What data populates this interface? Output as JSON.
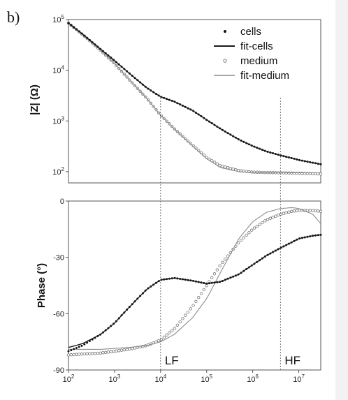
{
  "panel_label": "b)",
  "chart_data": [
    {
      "type": "line",
      "panel": "magnitude",
      "xscale": "log",
      "yscale": "log",
      "xlim": [
        100,
        30000000
      ],
      "ylim": [
        60,
        100000
      ],
      "ylabel": "|Z| (Ω)",
      "yticks": [
        {
          "value": 100,
          "base": "10",
          "exp": "2"
        },
        {
          "value": 1000,
          "base": "10",
          "exp": "3"
        },
        {
          "value": 10000,
          "base": "10",
          "exp": "4"
        },
        {
          "value": 100000,
          "base": "10",
          "exp": "5"
        }
      ],
      "legend": {
        "position": "top-right",
        "entries": [
          {
            "label": "cells",
            "style": "filled-dot"
          },
          {
            "label": "fit-cells",
            "style": "dark-line"
          },
          {
            "label": "medium",
            "style": "open-circle"
          },
          {
            "label": "fit-medium",
            "style": "gray-line"
          }
        ]
      },
      "series": [
        {
          "name": "cells",
          "style": "filled-dot",
          "x": [
            100,
            200,
            500,
            1000,
            2000,
            5000,
            10000,
            20000,
            50000,
            100000,
            200000,
            500000,
            1000000,
            2000000,
            4000000,
            7000000,
            10000000,
            20000000,
            30000000
          ],
          "y": [
            85000,
            52000,
            26000,
            15500,
            9000,
            4500,
            3000,
            2400,
            1600,
            1050,
            700,
            430,
            320,
            250,
            210,
            185,
            170,
            150,
            140
          ]
        },
        {
          "name": "fit-cells",
          "style": "dark-line",
          "x": [
            100,
            200,
            500,
            1000,
            2000,
            5000,
            10000,
            20000,
            50000,
            100000,
            200000,
            500000,
            1000000,
            2000000,
            4000000,
            7000000,
            10000000,
            20000000,
            30000000
          ],
          "y": [
            85000,
            52000,
            26000,
            15500,
            9000,
            4500,
            3000,
            2400,
            1600,
            1050,
            700,
            430,
            320,
            250,
            210,
            185,
            170,
            150,
            140
          ]
        },
        {
          "name": "medium",
          "style": "open-circle",
          "x": [
            100,
            200,
            500,
            1000,
            2000,
            5000,
            10000,
            20000,
            50000,
            100000,
            200000,
            500000,
            1000000,
            2000000,
            4000000,
            7000000,
            10000000,
            20000000,
            30000000
          ],
          "y": [
            85000,
            51000,
            24500,
            13500,
            6800,
            2800,
            1300,
            700,
            330,
            190,
            130,
            105,
            98,
            96,
            95,
            94,
            93,
            91,
            90
          ]
        },
        {
          "name": "fit-medium",
          "style": "gray-line",
          "x": [
            100,
            200,
            500,
            1000,
            2000,
            5000,
            10000,
            20000,
            50000,
            100000,
            200000,
            500000,
            1000000,
            2000000,
            4000000,
            7000000,
            10000000,
            20000000,
            30000000
          ],
          "y": [
            85000,
            51000,
            24500,
            13500,
            6800,
            2800,
            1300,
            690,
            320,
            180,
            120,
            100,
            96,
            95,
            95,
            95,
            95,
            95,
            95
          ]
        }
      ]
    },
    {
      "type": "line",
      "panel": "phase",
      "xscale": "log",
      "xlim": [
        100,
        30000000
      ],
      "ylim": [
        -90,
        0
      ],
      "ylabel": "Phase (°)",
      "yticks": [
        {
          "value": 0,
          "label": "0"
        },
        {
          "value": -30,
          "label": "-30"
        },
        {
          "value": -60,
          "label": "-60"
        },
        {
          "value": -90,
          "label": "-90"
        }
      ],
      "xticks": [
        {
          "value": 100,
          "base": "10",
          "exp": "2"
        },
        {
          "value": 1000,
          "base": "10",
          "exp": "3"
        },
        {
          "value": 10000,
          "base": "10",
          "exp": "4"
        },
        {
          "value": 100000,
          "base": "10",
          "exp": "5"
        },
        {
          "value": 1000000,
          "base": "10",
          "exp": "6"
        },
        {
          "value": 10000000,
          "base": "10",
          "exp": "7"
        }
      ],
      "series": [
        {
          "name": "cells",
          "style": "filled-dot",
          "x": [
            100,
            200,
            500,
            1000,
            2000,
            5000,
            10000,
            20000,
            50000,
            100000,
            200000,
            500000,
            1000000,
            2000000,
            4000000,
            7000000,
            10000000,
            20000000,
            30000000
          ],
          "y": [
            -80,
            -77,
            -71,
            -65,
            -57,
            -47,
            -42,
            -41,
            -42.5,
            -44,
            -43,
            -39,
            -34,
            -29,
            -25,
            -22,
            -20,
            -18.5,
            -18
          ]
        },
        {
          "name": "fit-cells",
          "style": "dark-line",
          "x": [
            100,
            200,
            500,
            1000,
            2000,
            5000,
            10000,
            20000,
            50000,
            100000,
            200000,
            500000,
            1000000,
            2000000,
            4000000,
            7000000,
            10000000,
            20000000,
            30000000
          ],
          "y": [
            -78,
            -76,
            -71,
            -65,
            -57,
            -47,
            -42,
            -41,
            -42.5,
            -44,
            -43,
            -39,
            -34,
            -29,
            -25,
            -22,
            -20,
            -18.5,
            -18
          ]
        },
        {
          "name": "medium",
          "style": "open-circle",
          "x": [
            100,
            200,
            500,
            1000,
            2000,
            5000,
            10000,
            20000,
            50000,
            100000,
            200000,
            500000,
            1000000,
            2000000,
            4000000,
            7000000,
            10000000,
            20000000,
            30000000
          ],
          "y": [
            -82,
            -81.5,
            -81,
            -80,
            -79,
            -77,
            -74,
            -68,
            -56,
            -45,
            -34,
            -22,
            -15,
            -10,
            -7,
            -5.5,
            -5,
            -5,
            -5.5
          ]
        },
        {
          "name": "fit-medium",
          "style": "gray-line",
          "x": [
            100,
            200,
            500,
            1000,
            2000,
            5000,
            10000,
            20000,
            50000,
            100000,
            200000,
            500000,
            1000000,
            2000000,
            4000000,
            7000000,
            10000000,
            20000000,
            30000000
          ],
          "y": [
            -79,
            -79,
            -79,
            -78.5,
            -78,
            -77,
            -75,
            -71,
            -62,
            -52,
            -38,
            -20,
            -11,
            -6,
            -4,
            -3.5,
            -4,
            -7,
            -12
          ]
        }
      ],
      "markers": [
        {
          "label": "LF",
          "x": 10000
        },
        {
          "label": "HF",
          "x": 4000000
        }
      ]
    }
  ]
}
